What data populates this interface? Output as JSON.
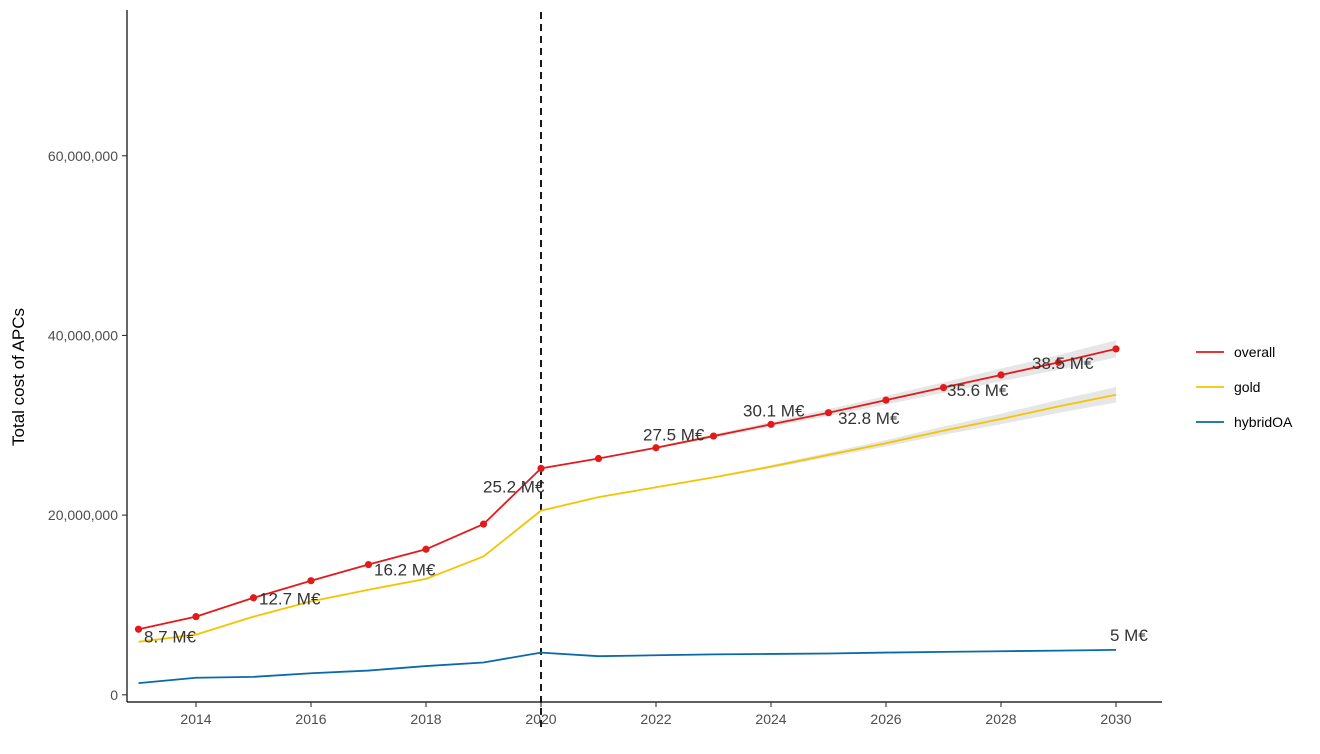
{
  "chart_data": {
    "type": "line",
    "xlabel": "",
    "ylabel": "Total cost of APCs",
    "xlim": [
      2012.8,
      2030.8
    ],
    "ylim": [
      -800000,
      76000000
    ],
    "x_ticks": [
      2014,
      2016,
      2018,
      2020,
      2022,
      2024,
      2026,
      2028,
      2030
    ],
    "x_tick_labels": [
      "2014",
      "2016",
      "2018",
      "2020",
      "2022",
      "2024",
      "2026",
      "2028",
      "2030"
    ],
    "y_ticks": [
      0,
      20000000,
      40000000,
      60000000
    ],
    "y_tick_labels": [
      "0",
      "20,000,000",
      "40,000,000",
      "60,000,000"
    ],
    "vline_x": 2020,
    "grid": false,
    "legend_position": "right",
    "series": [
      {
        "name": "overall",
        "color": "#e31a1c",
        "x": [
          2013,
          2014,
          2015,
          2016,
          2017,
          2018,
          2019,
          2020,
          2021,
          2022,
          2023,
          2024,
          2025,
          2026,
          2027,
          2028,
          2029,
          2030
        ],
        "values": [
          7300000,
          8700000,
          10800000,
          12700000,
          14500000,
          16200000,
          19000000,
          25200000,
          26300000,
          27500000,
          28800000,
          30100000,
          31400000,
          32800000,
          34200000,
          35600000,
          37000000,
          38500000
        ],
        "points": true,
        "ribbon_from": 2021,
        "ribbon_halfwidth": [
          0,
          100000,
          200000,
          280000,
          380000,
          480000,
          580000,
          700000,
          820000,
          950000
        ]
      },
      {
        "name": "gold",
        "color": "#f5c400",
        "x": [
          2013,
          2014,
          2015,
          2016,
          2017,
          2018,
          2019,
          2020,
          2021,
          2022,
          2023,
          2024,
          2025,
          2026,
          2027,
          2028,
          2029,
          2030
        ],
        "values": [
          5900000,
          6700000,
          8700000,
          10400000,
          11700000,
          12900000,
          15400000,
          20500000,
          22000000,
          23100000,
          24200000,
          25400000,
          26700000,
          28000000,
          29400000,
          30700000,
          32100000,
          33400000
        ],
        "points": false,
        "ribbon_from": 2022,
        "ribbon_halfwidth": [
          0,
          80000,
          170000,
          260000,
          360000,
          460000,
          580000,
          720000,
          860000
        ]
      },
      {
        "name": "hybridOA",
        "color": "#0a6aa8",
        "x": [
          2013,
          2014,
          2015,
          2016,
          2017,
          2018,
          2019,
          2020,
          2021,
          2022,
          2023,
          2024,
          2025,
          2026,
          2027,
          2028,
          2029,
          2030
        ],
        "values": [
          1300000,
          1900000,
          2000000,
          2400000,
          2700000,
          3200000,
          3600000,
          4700000,
          4300000,
          4400000,
          4500000,
          4550000,
          4600000,
          4700000,
          4780000,
          4850000,
          4920000,
          5000000
        ],
        "points": false
      }
    ],
    "annotations": [
      {
        "text": "8.7 M€",
        "x": 2014,
        "y": 8700000,
        "dx": -52,
        "dy": 26
      },
      {
        "text": "12.7 M€",
        "x": 2016,
        "y": 12700000,
        "dx": -52,
        "dy": 24
      },
      {
        "text": "16.2 M€",
        "x": 2018,
        "y": 16200000,
        "dx": -52,
        "dy": 26
      },
      {
        "text": "25.2 M€",
        "x": 2020,
        "y": 25200000,
        "dx": -58,
        "dy": 24
      },
      {
        "text": "27.5 M€",
        "x": 2022,
        "y": 27500000,
        "dx": -13,
        "dy": -7
      },
      {
        "text": "30.1 M€",
        "x": 2024,
        "y": 30100000,
        "dx": -28,
        "dy": -8
      },
      {
        "text": "32.8 M€",
        "x": 2026,
        "y": 32800000,
        "dx": -48,
        "dy": 24
      },
      {
        "text": "35.6 M€",
        "x": 2028,
        "y": 35600000,
        "dx": -54,
        "dy": 21
      },
      {
        "text": "38.5 M€",
        "x": 2030,
        "y": 38500000,
        "dx": -84,
        "dy": 20
      },
      {
        "text": "5 M€",
        "x": 2030,
        "y": 5000000,
        "dx": -6,
        "dy": -9
      }
    ]
  }
}
